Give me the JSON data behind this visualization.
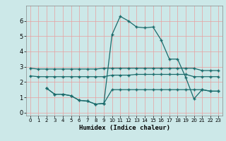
{
  "title": "",
  "xlabel": "Humidex (Indice chaleur)",
  "ylabel": "",
  "bg_color": "#cce8e8",
  "grid_color": "#e8a0a0",
  "line_color": "#1a6b6b",
  "xlim": [
    -0.5,
    23.5
  ],
  "ylim": [
    -0.2,
    7.0
  ],
  "xticks": [
    0,
    1,
    2,
    3,
    4,
    5,
    6,
    7,
    8,
    9,
    10,
    11,
    12,
    13,
    14,
    15,
    16,
    17,
    18,
    19,
    20,
    21,
    22,
    23
  ],
  "yticks": [
    0,
    1,
    2,
    3,
    4,
    5,
    6
  ],
  "line1_x": [
    0,
    1,
    2,
    3,
    4,
    5,
    6,
    7,
    8,
    9,
    10,
    11,
    12,
    13,
    14,
    15,
    16,
    17,
    18,
    19,
    20,
    21,
    22,
    23
  ],
  "line1_y": [
    2.9,
    2.85,
    2.85,
    2.85,
    2.85,
    2.85,
    2.85,
    2.85,
    2.85,
    2.9,
    2.9,
    2.9,
    2.9,
    2.9,
    2.9,
    2.9,
    2.9,
    2.9,
    2.9,
    2.9,
    2.9,
    2.75,
    2.75,
    2.75
  ],
  "line2_x": [
    0,
    1,
    2,
    3,
    4,
    5,
    6,
    7,
    8,
    9,
    10,
    11,
    12,
    13,
    14,
    15,
    16,
    17,
    18,
    19,
    20,
    21,
    22,
    23
  ],
  "line2_y": [
    2.4,
    2.35,
    2.35,
    2.35,
    2.35,
    2.35,
    2.35,
    2.35,
    2.35,
    2.35,
    2.45,
    2.45,
    2.45,
    2.5,
    2.5,
    2.5,
    2.5,
    2.5,
    2.5,
    2.5,
    2.35,
    2.35,
    2.35,
    2.35
  ],
  "line3_x": [
    2,
    3,
    4,
    5,
    6,
    7,
    8,
    9,
    10,
    11,
    12,
    13,
    14,
    15,
    16,
    17,
    18,
    19,
    20,
    21,
    22,
    23
  ],
  "line3_y": [
    1.6,
    1.2,
    1.2,
    1.1,
    0.8,
    0.75,
    0.55,
    0.6,
    5.1,
    6.3,
    6.0,
    5.6,
    5.55,
    5.6,
    4.75,
    3.5,
    3.5,
    2.3,
    0.9,
    1.5,
    1.4,
    1.4
  ],
  "line4_x": [
    2,
    3,
    4,
    5,
    6,
    7,
    8,
    9,
    10,
    11,
    12,
    13,
    14,
    15,
    16,
    17,
    18,
    19,
    20,
    21,
    22,
    23
  ],
  "line4_y": [
    1.6,
    1.2,
    1.2,
    1.1,
    0.8,
    0.75,
    0.55,
    0.6,
    1.5,
    1.5,
    1.5,
    1.5,
    1.5,
    1.5,
    1.5,
    1.5,
    1.5,
    1.5,
    1.5,
    1.5,
    1.4,
    1.4
  ]
}
